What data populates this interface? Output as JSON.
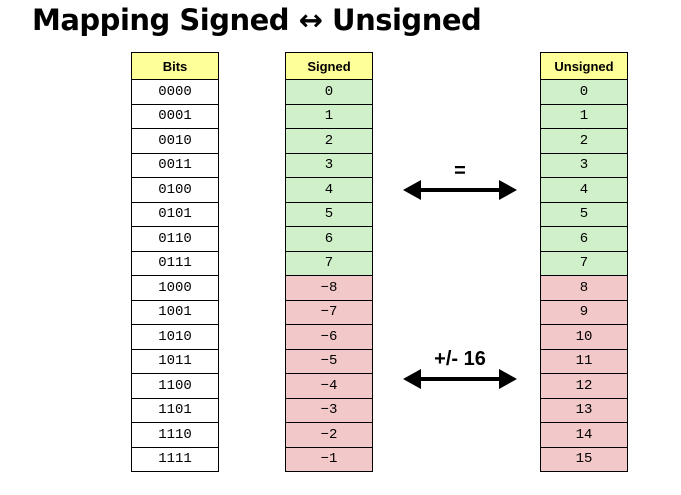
{
  "title": "Mapping Signed ↔ Unsigned",
  "headers": {
    "bits": "Bits",
    "signed": "Signed",
    "unsigned": "Unsigned"
  },
  "rows": [
    {
      "bits": "0000",
      "signed": "0",
      "unsigned": "0",
      "match": true
    },
    {
      "bits": "0001",
      "signed": "1",
      "unsigned": "1",
      "match": true
    },
    {
      "bits": "0010",
      "signed": "2",
      "unsigned": "2",
      "match": true
    },
    {
      "bits": "0011",
      "signed": "3",
      "unsigned": "3",
      "match": true
    },
    {
      "bits": "0100",
      "signed": "4",
      "unsigned": "4",
      "match": true
    },
    {
      "bits": "0101",
      "signed": "5",
      "unsigned": "5",
      "match": true
    },
    {
      "bits": "0110",
      "signed": "6",
      "unsigned": "6",
      "match": true
    },
    {
      "bits": "0111",
      "signed": "7",
      "unsigned": "7",
      "match": true
    },
    {
      "bits": "1000",
      "signed": "−8",
      "unsigned": "8",
      "match": false
    },
    {
      "bits": "1001",
      "signed": "−7",
      "unsigned": "9",
      "match": false
    },
    {
      "bits": "1010",
      "signed": "−6",
      "unsigned": "10",
      "match": false
    },
    {
      "bits": "1011",
      "signed": "−5",
      "unsigned": "11",
      "match": false
    },
    {
      "bits": "1100",
      "signed": "−4",
      "unsigned": "12",
      "match": false
    },
    {
      "bits": "1101",
      "signed": "−3",
      "unsigned": "13",
      "match": false
    },
    {
      "bits": "1110",
      "signed": "−2",
      "unsigned": "14",
      "match": false
    },
    {
      "bits": "1111",
      "signed": "−1",
      "unsigned": "15",
      "match": false
    }
  ],
  "arrows": {
    "equal_label": "=",
    "offset_label": "+/- 16"
  },
  "colors": {
    "header": "#ffff99",
    "same": "#cff0c8",
    "different": "#f2c8c8"
  }
}
